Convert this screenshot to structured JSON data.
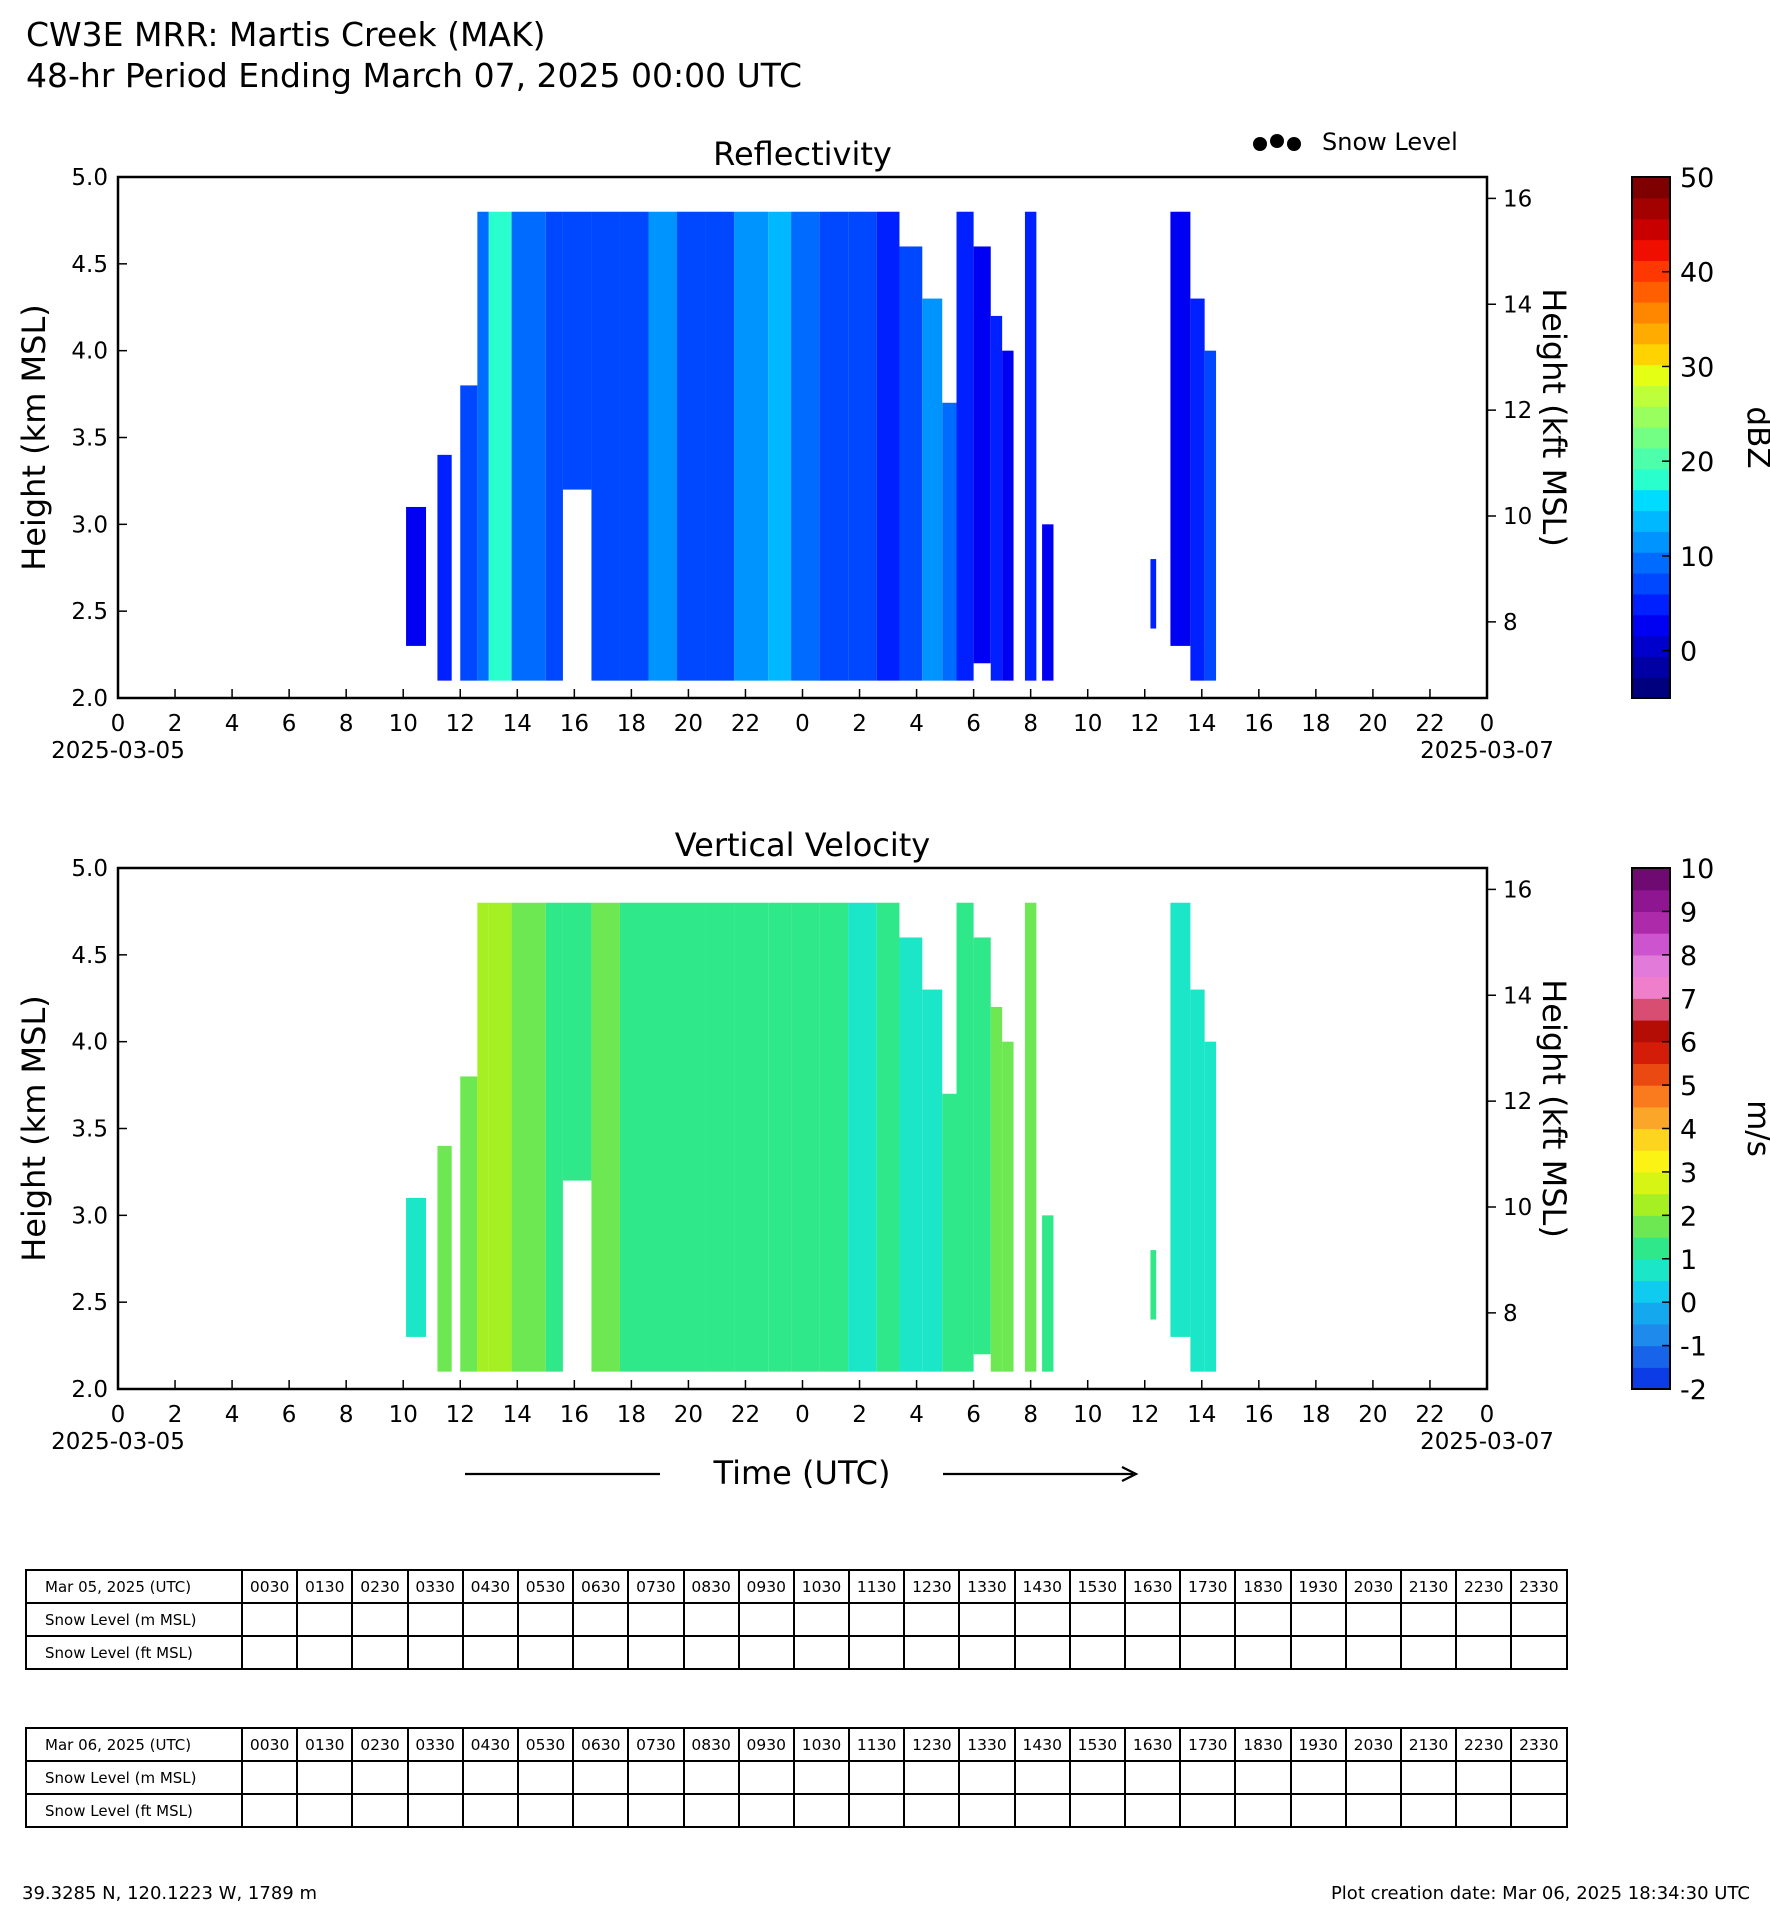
{
  "header": {
    "title_line1": "CW3E MRR: Martis Creek (MAK)",
    "title_line2": "48-hr Period Ending March 07, 2025 00:00 UTC"
  },
  "legend": {
    "snow_level_label": "Snow Level"
  },
  "x_axis_label": "Time (UTC)",
  "chart_data": [
    {
      "type": "heatmap",
      "title": "Reflectivity",
      "ylabel": "Height (km MSL)",
      "y2label": "Height (kft MSL)",
      "ylim": [
        2.0,
        5.0
      ],
      "yticks": [
        "2.0",
        "2.5",
        "3.0",
        "3.5",
        "4.0",
        "4.5",
        "5.0"
      ],
      "y2ticks": [
        8,
        10,
        12,
        14,
        16
      ],
      "xlim_hours": [
        0,
        48
      ],
      "xticks": [
        "0",
        "2",
        "4",
        "6",
        "8",
        "10",
        "12",
        "14",
        "16",
        "18",
        "20",
        "22",
        "0",
        "2",
        "4",
        "6",
        "8",
        "10",
        "12",
        "14",
        "16",
        "18",
        "20",
        "22",
        "0"
      ],
      "start_date": "2025-03-05",
      "end_date": "2025-03-07",
      "colorbar": {
        "label": "dBZ",
        "min": -5,
        "max": 50,
        "ticks": [
          "0",
          "10",
          "20",
          "30",
          "40",
          "50"
        ]
      },
      "regions": [
        {
          "t0": 10.1,
          "t1": 10.8,
          "h0": 2.3,
          "h1": 3.1,
          "value": 3
        },
        {
          "t0": 11.2,
          "t1": 11.7,
          "h0": 2.1,
          "h1": 3.4,
          "value": 5
        },
        {
          "t0": 12.0,
          "t1": 12.6,
          "h0": 2.1,
          "h1": 3.8,
          "value": 6
        },
        {
          "t0": 12.6,
          "t1": 13.0,
          "h0": 2.1,
          "h1": 4.8,
          "value": 9
        },
        {
          "t0": 13.0,
          "t1": 13.8,
          "h0": 2.1,
          "h1": 4.8,
          "value": 17
        },
        {
          "t0": 13.8,
          "t1": 15.0,
          "h0": 2.1,
          "h1": 4.8,
          "value": 10
        },
        {
          "t0": 15.0,
          "t1": 15.6,
          "h0": 2.1,
          "h1": 4.8,
          "value": 7
        },
        {
          "t0": 15.6,
          "t1": 16.6,
          "h0": 3.2,
          "h1": 4.8,
          "value": 6
        },
        {
          "t0": 16.6,
          "t1": 17.6,
          "h0": 2.1,
          "h1": 4.8,
          "value": 7
        },
        {
          "t0": 17.6,
          "t1": 18.6,
          "h0": 2.1,
          "h1": 4.8,
          "value": 8
        },
        {
          "t0": 18.6,
          "t1": 19.6,
          "h0": 2.1,
          "h1": 4.8,
          "value": 12
        },
        {
          "t0": 19.6,
          "t1": 20.6,
          "h0": 2.1,
          "h1": 4.8,
          "value": 8
        },
        {
          "t0": 20.6,
          "t1": 21.6,
          "h0": 2.1,
          "h1": 4.8,
          "value": 6
        },
        {
          "t0": 21.6,
          "t1": 22.8,
          "h0": 2.1,
          "h1": 4.8,
          "value": 11
        },
        {
          "t0": 22.8,
          "t1": 23.6,
          "h0": 2.1,
          "h1": 4.8,
          "value": 14
        },
        {
          "t0": 23.6,
          "t1": 24.6,
          "h0": 2.1,
          "h1": 4.8,
          "value": 10
        },
        {
          "t0": 24.6,
          "t1": 25.6,
          "h0": 2.1,
          "h1": 4.8,
          "value": 8
        },
        {
          "t0": 25.6,
          "t1": 26.6,
          "h0": 2.1,
          "h1": 4.8,
          "value": 7
        },
        {
          "t0": 26.6,
          "t1": 27.4,
          "h0": 2.1,
          "h1": 4.8,
          "value": 5
        },
        {
          "t0": 27.4,
          "t1": 28.2,
          "h0": 2.1,
          "h1": 4.6,
          "value": 6
        },
        {
          "t0": 28.2,
          "t1": 28.9,
          "h0": 2.1,
          "h1": 4.3,
          "value": 11
        },
        {
          "t0": 28.9,
          "t1": 29.4,
          "h0": 2.1,
          "h1": 3.7,
          "value": 9
        },
        {
          "t0": 29.4,
          "t1": 30.0,
          "h0": 2.1,
          "h1": 4.8,
          "value": 4
        },
        {
          "t0": 30.0,
          "t1": 30.6,
          "h0": 2.2,
          "h1": 4.6,
          "value": 3
        },
        {
          "t0": 30.6,
          "t1": 31.0,
          "h0": 2.1,
          "h1": 4.2,
          "value": 4
        },
        {
          "t0": 31.0,
          "t1": 31.4,
          "h0": 2.1,
          "h1": 4.0,
          "value": 3
        },
        {
          "t0": 31.8,
          "t1": 32.2,
          "h0": 2.1,
          "h1": 4.8,
          "value": 5
        },
        {
          "t0": 32.4,
          "t1": 32.8,
          "h0": 2.1,
          "h1": 3.0,
          "value": 3
        },
        {
          "t0": 36.2,
          "t1": 36.4,
          "h0": 2.4,
          "h1": 2.8,
          "value": 4
        },
        {
          "t0": 36.9,
          "t1": 37.6,
          "h0": 2.3,
          "h1": 4.8,
          "value": 2
        },
        {
          "t0": 37.6,
          "t1": 38.1,
          "h0": 2.1,
          "h1": 4.3,
          "value": 5
        },
        {
          "t0": 38.1,
          "t1": 38.5,
          "h0": 2.1,
          "h1": 4.0,
          "value": 8
        }
      ]
    },
    {
      "type": "heatmap",
      "title": "Vertical Velocity",
      "ylabel": "Height (km MSL)",
      "y2label": "Height (kft MSL)",
      "ylim": [
        2.0,
        5.0
      ],
      "yticks": [
        "2.0",
        "2.5",
        "3.0",
        "3.5",
        "4.0",
        "4.5",
        "5.0"
      ],
      "y2ticks": [
        8,
        10,
        12,
        14,
        16
      ],
      "xlim_hours": [
        0,
        48
      ],
      "xticks": [
        "0",
        "2",
        "4",
        "6",
        "8",
        "10",
        "12",
        "14",
        "16",
        "18",
        "20",
        "22",
        "0",
        "2",
        "4",
        "6",
        "8",
        "10",
        "12",
        "14",
        "16",
        "18",
        "20",
        "22",
        "0"
      ],
      "start_date": "2025-03-05",
      "end_date": "2025-03-07",
      "colorbar": {
        "label": "m/s",
        "min": -2,
        "max": 10,
        "ticks": [
          "-2",
          "-1",
          "0",
          "1",
          "2",
          "3",
          "4",
          "5",
          "6",
          "7",
          "8",
          "9",
          "10"
        ]
      },
      "regions": [
        {
          "t0": 10.1,
          "t1": 10.8,
          "h0": 2.3,
          "h1": 3.1,
          "value": 0.6
        },
        {
          "t0": 11.2,
          "t1": 11.7,
          "h0": 2.1,
          "h1": 3.4,
          "value": 1.8
        },
        {
          "t0": 12.0,
          "t1": 12.6,
          "h0": 2.1,
          "h1": 3.8,
          "value": 1.6
        },
        {
          "t0": 12.6,
          "t1": 13.0,
          "h0": 2.1,
          "h1": 4.8,
          "value": 2.0
        },
        {
          "t0": 13.0,
          "t1": 13.8,
          "h0": 2.1,
          "h1": 4.8,
          "value": 2.2
        },
        {
          "t0": 13.8,
          "t1": 15.0,
          "h0": 2.1,
          "h1": 4.8,
          "value": 1.6
        },
        {
          "t0": 15.0,
          "t1": 15.6,
          "h0": 2.1,
          "h1": 4.8,
          "value": 1.4
        },
        {
          "t0": 15.6,
          "t1": 16.6,
          "h0": 3.2,
          "h1": 4.8,
          "value": 1.3
        },
        {
          "t0": 16.6,
          "t1": 17.6,
          "h0": 2.1,
          "h1": 4.8,
          "value": 1.5
        },
        {
          "t0": 17.6,
          "t1": 18.6,
          "h0": 2.1,
          "h1": 4.8,
          "value": 1.2
        },
        {
          "t0": 18.6,
          "t1": 19.6,
          "h0": 2.1,
          "h1": 4.8,
          "value": 1.3
        },
        {
          "t0": 19.6,
          "t1": 20.6,
          "h0": 2.1,
          "h1": 4.8,
          "value": 1.0
        },
        {
          "t0": 20.6,
          "t1": 21.6,
          "h0": 2.1,
          "h1": 4.8,
          "value": 1.4
        },
        {
          "t0": 21.6,
          "t1": 22.8,
          "h0": 2.1,
          "h1": 4.8,
          "value": 1.1
        },
        {
          "t0": 22.8,
          "t1": 23.6,
          "h0": 2.1,
          "h1": 4.8,
          "value": 1.3
        },
        {
          "t0": 23.6,
          "t1": 24.6,
          "h0": 2.1,
          "h1": 4.8,
          "value": 1.0
        },
        {
          "t0": 24.6,
          "t1": 25.6,
          "h0": 2.1,
          "h1": 4.8,
          "value": 1.2
        },
        {
          "t0": 25.6,
          "t1": 26.6,
          "h0": 2.1,
          "h1": 4.8,
          "value": 0.9
        },
        {
          "t0": 26.6,
          "t1": 27.4,
          "h0": 2.1,
          "h1": 4.8,
          "value": 1.1
        },
        {
          "t0": 27.4,
          "t1": 28.2,
          "h0": 2.1,
          "h1": 4.6,
          "value": 0.8
        },
        {
          "t0": 28.2,
          "t1": 28.9,
          "h0": 2.1,
          "h1": 4.3,
          "value": 0.9
        },
        {
          "t0": 28.9,
          "t1": 29.4,
          "h0": 2.1,
          "h1": 3.7,
          "value": 1.3
        },
        {
          "t0": 29.4,
          "t1": 30.0,
          "h0": 2.1,
          "h1": 4.8,
          "value": 1.4
        },
        {
          "t0": 30.0,
          "t1": 30.6,
          "h0": 2.2,
          "h1": 4.6,
          "value": 1.2
        },
        {
          "t0": 30.6,
          "t1": 31.0,
          "h0": 2.1,
          "h1": 4.2,
          "value": 1.5
        },
        {
          "t0": 31.0,
          "t1": 31.4,
          "h0": 2.1,
          "h1": 4.0,
          "value": 1.7
        },
        {
          "t0": 31.8,
          "t1": 32.2,
          "h0": 2.1,
          "h1": 4.8,
          "value": 1.6
        },
        {
          "t0": 32.4,
          "t1": 32.8,
          "h0": 2.1,
          "h1": 3.0,
          "value": 1.4
        },
        {
          "t0": 36.2,
          "t1": 36.4,
          "h0": 2.4,
          "h1": 2.8,
          "value": 1.2
        },
        {
          "t0": 36.9,
          "t1": 37.6,
          "h0": 2.3,
          "h1": 4.8,
          "value": 0.7
        },
        {
          "t0": 37.6,
          "t1": 38.1,
          "h0": 2.1,
          "h1": 4.3,
          "value": 0.6
        },
        {
          "t0": 38.1,
          "t1": 38.5,
          "h0": 2.1,
          "h1": 4.0,
          "value": 0.5
        }
      ]
    }
  ],
  "snow_tables": [
    {
      "date_label": "Mar 05, 2025 (UTC)",
      "times": [
        "0030",
        "0130",
        "0230",
        "0330",
        "0430",
        "0530",
        "0630",
        "0730",
        "0830",
        "0930",
        "1030",
        "1130",
        "1230",
        "1330",
        "1430",
        "1530",
        "1630",
        "1730",
        "1830",
        "1930",
        "2030",
        "2130",
        "2230",
        "2330"
      ],
      "row_labels": [
        "Snow Level (m MSL)",
        "Snow Level (ft MSL)"
      ]
    },
    {
      "date_label": "Mar 06, 2025 (UTC)",
      "times": [
        "0030",
        "0130",
        "0230",
        "0330",
        "0430",
        "0530",
        "0630",
        "0730",
        "0830",
        "0930",
        "1030",
        "1130",
        "1230",
        "1330",
        "1430",
        "1530",
        "1630",
        "1730",
        "1830",
        "1930",
        "2030",
        "2130",
        "2230",
        "2330"
      ],
      "row_labels": [
        "Snow Level (m MSL)",
        "Snow Level (ft MSL)"
      ]
    }
  ],
  "footer": {
    "location": "39.3285 N, 120.1223 W, 1789 m",
    "creation": "Plot creation date: Mar 06, 2025 18:34:30 UTC"
  },
  "colors": {
    "reflectivity_scale": [
      "#00007f",
      "#0000a5",
      "#0000cc",
      "#0000f2",
      "#0020ff",
      "#0048ff",
      "#006cff",
      "#0094ff",
      "#00b8ff",
      "#00dcff",
      "#29ffcd",
      "#4dffaa",
      "#73ff83",
      "#99ff5e",
      "#bdff3a",
      "#e4ff13",
      "#ffd300",
      "#ffab00",
      "#ff8700",
      "#ff5f00",
      "#ff3700",
      "#f00e00",
      "#c90000",
      "#a30000",
      "#7f0000"
    ],
    "velocity_scale": [
      "#0b3ce6",
      "#1763ea",
      "#1e8aec",
      "#14a9ee",
      "#10cbf0",
      "#1be6c8",
      "#2fe88a",
      "#6ee852",
      "#a6ef22",
      "#d7f514",
      "#fbf314",
      "#fdd41e",
      "#fca629",
      "#fa7a1e",
      "#ea4a12",
      "#d41d08",
      "#b30d05",
      "#d84e73",
      "#f07fcb",
      "#e27ad9",
      "#cc55cf",
      "#ad2aab",
      "#8f1691",
      "#6f0a73"
    ]
  }
}
